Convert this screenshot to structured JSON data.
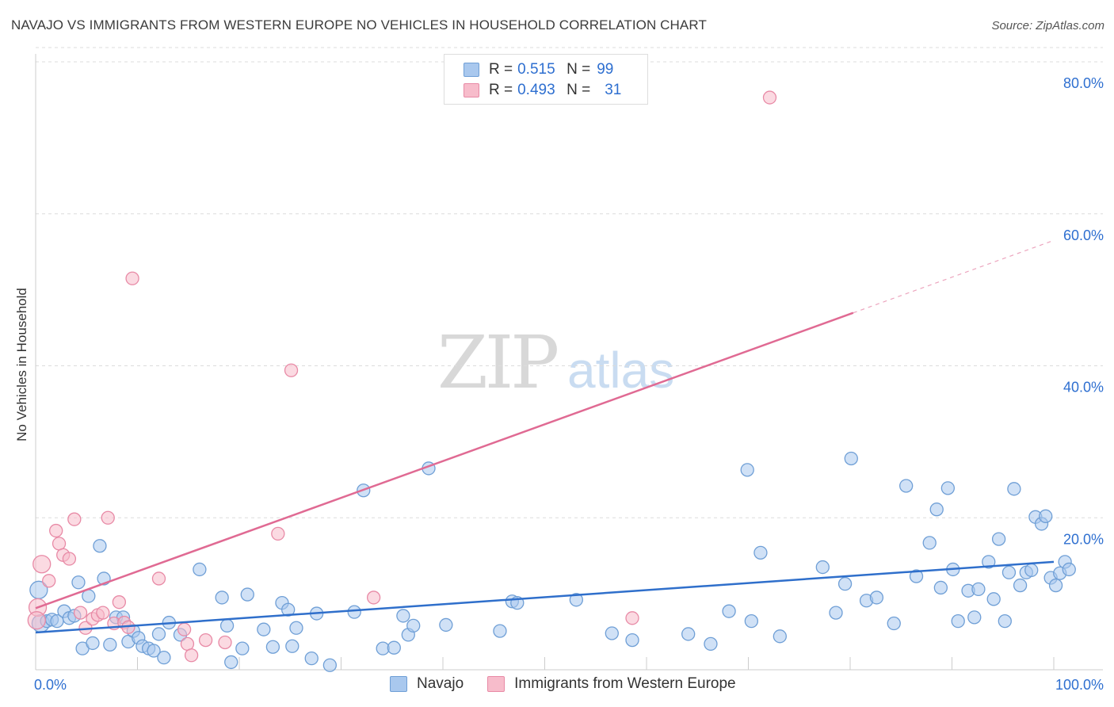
{
  "title": "NAVAJO VS IMMIGRANTS FROM WESTERN EUROPE NO VEHICLES IN HOUSEHOLD CORRELATION CHART",
  "source": "Source: ZipAtlas.com",
  "watermark": {
    "zip": "ZIP",
    "atlas": "atlas"
  },
  "legend": {
    "navajo": {
      "r_label": "R =",
      "r_value": "0.515",
      "n_label": "N =",
      "n_value": "99"
    },
    "immigrants": {
      "r_label": "R =",
      "r_value": "0.493",
      "n_label": "N =",
      "n_value": "31"
    }
  },
  "bottom_legend": {
    "navajo": "Navajo",
    "immigrants": "Immigrants from Western Europe"
  },
  "colors": {
    "navajo_fill": "#a9c8ee",
    "navajo_stroke": "#6f9fd6",
    "navajo_line": "#2f6fcb",
    "immig_fill": "#f7bccb",
    "immig_stroke": "#e88aa6",
    "immig_line": "#e06a93",
    "axis_text": "#2e6fd0",
    "grid": "#dcdcdc"
  },
  "chart_data": {
    "type": "scatter",
    "title": "NAVAJO VS IMMIGRANTS FROM WESTERN EUROPE NO VEHICLES IN HOUSEHOLD CORRELATION CHART",
    "xlabel": "",
    "ylabel": "No Vehicles in Household",
    "xlim": [
      0,
      100
    ],
    "ylim": [
      0,
      80
    ],
    "x_tick_labels": [
      "0.0%",
      "100.0%"
    ],
    "y_ticks": [
      20,
      40,
      60,
      80
    ],
    "y_tick_labels": [
      "20.0%",
      "40.0%",
      "60.0%",
      "80.0%"
    ],
    "series": [
      {
        "name": "Navajo",
        "trend": {
          "x0": 0,
          "y0": 4.9,
          "x1": 100,
          "y1": 14.2,
          "solid_until": 100
        },
        "points": [
          [
            0.3,
            10.5
          ],
          [
            0.5,
            6.1
          ],
          [
            1.1,
            6.4
          ],
          [
            1.6,
            6.6
          ],
          [
            2.1,
            6.4
          ],
          [
            2.8,
            7.7
          ],
          [
            3.3,
            6.8
          ],
          [
            3.8,
            7.1
          ],
          [
            4.2,
            11.5
          ],
          [
            4.6,
            2.8
          ],
          [
            5.2,
            9.7
          ],
          [
            5.6,
            3.5
          ],
          [
            6.3,
            16.3
          ],
          [
            6.7,
            12.0
          ],
          [
            7.3,
            3.3
          ],
          [
            7.9,
            6.9
          ],
          [
            8.6,
            6.9
          ],
          [
            9.1,
            3.7
          ],
          [
            9.6,
            5.1
          ],
          [
            10.1,
            4.2
          ],
          [
            10.5,
            3.1
          ],
          [
            11.1,
            2.8
          ],
          [
            11.6,
            2.5
          ],
          [
            12.1,
            4.7
          ],
          [
            12.6,
            1.6
          ],
          [
            13.1,
            6.2
          ],
          [
            14.2,
            4.6
          ],
          [
            16.1,
            13.2
          ],
          [
            18.3,
            9.5
          ],
          [
            18.8,
            5.8
          ],
          [
            19.2,
            1.0
          ],
          [
            20.3,
            2.8
          ],
          [
            20.8,
            9.9
          ],
          [
            22.4,
            5.3
          ],
          [
            23.3,
            3.0
          ],
          [
            24.2,
            8.8
          ],
          [
            24.8,
            7.9
          ],
          [
            25.2,
            3.1
          ],
          [
            25.6,
            5.5
          ],
          [
            27.1,
            1.5
          ],
          [
            27.6,
            7.4
          ],
          [
            28.9,
            0.6
          ],
          [
            31.3,
            7.6
          ],
          [
            32.2,
            23.6
          ],
          [
            34.1,
            2.8
          ],
          [
            35.2,
            2.9
          ],
          [
            36.1,
            7.1
          ],
          [
            36.6,
            4.6
          ],
          [
            37.1,
            5.8
          ],
          [
            38.6,
            26.5
          ],
          [
            40.3,
            5.9
          ],
          [
            45.6,
            5.1
          ],
          [
            46.8,
            9.0
          ],
          [
            47.3,
            8.8
          ],
          [
            53.1,
            9.2
          ],
          [
            56.6,
            4.8
          ],
          [
            58.6,
            3.9
          ],
          [
            64.1,
            4.7
          ],
          [
            66.3,
            3.4
          ],
          [
            68.1,
            7.7
          ],
          [
            69.9,
            26.3
          ],
          [
            70.3,
            6.4
          ],
          [
            71.2,
            15.4
          ],
          [
            73.1,
            4.4
          ],
          [
            77.3,
            13.5
          ],
          [
            78.6,
            7.5
          ],
          [
            79.5,
            11.3
          ],
          [
            80.1,
            27.8
          ],
          [
            81.6,
            9.1
          ],
          [
            82.6,
            9.5
          ],
          [
            84.3,
            6.1
          ],
          [
            85.5,
            24.2
          ],
          [
            86.5,
            12.3
          ],
          [
            87.8,
            16.7
          ],
          [
            88.5,
            21.1
          ],
          [
            88.9,
            10.8
          ],
          [
            89.6,
            23.9
          ],
          [
            90.1,
            13.2
          ],
          [
            90.6,
            6.4
          ],
          [
            91.6,
            10.4
          ],
          [
            92.2,
            6.9
          ],
          [
            92.6,
            10.6
          ],
          [
            93.6,
            14.2
          ],
          [
            94.1,
            9.3
          ],
          [
            94.6,
            17.2
          ],
          [
            95.2,
            6.4
          ],
          [
            95.6,
            12.8
          ],
          [
            96.1,
            23.8
          ],
          [
            96.7,
            11.1
          ],
          [
            97.3,
            12.8
          ],
          [
            97.8,
            13.1
          ],
          [
            98.2,
            20.1
          ],
          [
            98.8,
            19.2
          ],
          [
            99.2,
            20.2
          ],
          [
            99.7,
            12.1
          ],
          [
            100.2,
            11.1
          ],
          [
            100.6,
            12.7
          ],
          [
            101.1,
            14.2
          ],
          [
            101.5,
            13.2
          ]
        ]
      },
      {
        "name": "Immigrants from Western Europe",
        "trend": {
          "x0": 0,
          "y0": 8.1,
          "x1": 100,
          "y1": 56.5,
          "solid_until": 80.3
        },
        "points": [
          [
            0.2,
            8.2
          ],
          [
            0.6,
            13.9
          ],
          [
            1.3,
            11.7
          ],
          [
            2.0,
            18.3
          ],
          [
            2.3,
            16.6
          ],
          [
            2.7,
            15.1
          ],
          [
            3.3,
            14.6
          ],
          [
            3.8,
            19.8
          ],
          [
            4.4,
            7.5
          ],
          [
            4.9,
            5.5
          ],
          [
            5.6,
            6.7
          ],
          [
            6.1,
            7.2
          ],
          [
            6.6,
            7.5
          ],
          [
            7.1,
            20.0
          ],
          [
            7.7,
            6.1
          ],
          [
            8.2,
            8.9
          ],
          [
            8.7,
            6.2
          ],
          [
            9.1,
            5.6
          ],
          [
            9.5,
            51.5
          ],
          [
            12.1,
            12.0
          ],
          [
            14.6,
            5.3
          ],
          [
            14.9,
            3.4
          ],
          [
            15.3,
            1.9
          ],
          [
            16.7,
            3.9
          ],
          [
            18.6,
            3.6
          ],
          [
            23.8,
            17.9
          ],
          [
            25.1,
            39.4
          ],
          [
            33.2,
            9.5
          ],
          [
            58.6,
            6.8
          ],
          [
            72.1,
            75.3
          ],
          [
            0.1,
            6.5
          ]
        ]
      }
    ]
  }
}
